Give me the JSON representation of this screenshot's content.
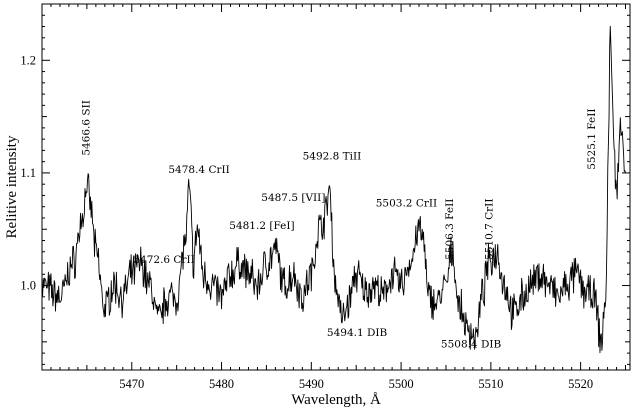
{
  "chart_data": {
    "type": "line",
    "title": "",
    "xlabel": "Wavelength, Å",
    "ylabel": "Relitive intensity",
    "xlim": [
      5460,
      5525.5
    ],
    "ylim": [
      0.925,
      1.25
    ],
    "x_ticks": [
      5470,
      5480,
      5490,
      5500,
      5510,
      5520
    ],
    "y_ticks": [
      1.0,
      1.1,
      1.2
    ],
    "y_tick_labels": [
      "1.0",
      "1.1",
      "1.2"
    ],
    "grid": false,
    "legend": "none",
    "line_color": "#000000",
    "series": [
      {
        "x": [
          5460,
          5462,
          5463.5,
          5464.5,
          5465,
          5465.4,
          5466,
          5467,
          5468,
          5469,
          5470,
          5471,
          5472,
          5473,
          5474,
          5475,
          5476,
          5476.4,
          5476.9,
          5477.3,
          5478,
          5479,
          5480,
          5481,
          5482,
          5483,
          5484,
          5485,
          5486,
          5487,
          5488,
          5489,
          5490,
          5490.8,
          5491.5,
          5492,
          5492.7,
          5493.5,
          5494.1,
          5495,
          5496,
          5497,
          5498,
          5499,
          5500,
          5501,
          5502,
          5502.5,
          5503,
          5504,
          5505,
          5505.7,
          5506.5,
          5507.5,
          5508.4,
          5509,
          5509.8,
          5510.7,
          5511.5,
          5512.5,
          5513.5,
          5514.5,
          5515.5,
          5516.5,
          5517.5,
          5518.5,
          5519.5,
          5520.5,
          5521.5,
          5522.3,
          5522.8,
          5523.1,
          5523.3,
          5523.6,
          5524,
          5524.5,
          5525
        ],
        "y": [
          1.0,
          0.99,
          1.02,
          1.06,
          1.09,
          1.07,
          1.03,
          0.98,
          1.0,
          0.99,
          1.01,
          1.02,
          1.0,
          0.97,
          0.99,
          0.99,
          1.04,
          1.085,
          1.02,
          1.05,
          1.01,
          1.0,
          0.99,
          1.01,
          1.02,
          1.01,
          1.0,
          1.02,
          1.03,
          1.0,
          1.01,
          0.99,
          1.01,
          1.05,
          1.06,
          1.085,
          1.0,
          0.97,
          0.985,
          1.01,
          0.995,
          1.0,
          0.99,
          1.01,
          1.0,
          1.02,
          1.05,
          1.04,
          0.99,
          0.985,
          1.0,
          1.03,
          0.98,
          0.96,
          0.955,
          0.99,
          1.02,
          1.03,
          1.0,
          0.975,
          0.99,
          1.0,
          1.01,
          1.0,
          0.99,
          1.0,
          1.01,
          0.995,
          0.99,
          0.95,
          0.99,
          1.12,
          1.23,
          1.15,
          1.08,
          1.15,
          1.1
        ]
      }
    ],
    "annotations": [
      {
        "text": "5466.6 SII",
        "x": 5465.3,
        "y": 1.14,
        "rotate": true
      },
      {
        "text": "5472.6 CrII",
        "x": 5473.6,
        "y": 1.02,
        "rotate": false
      },
      {
        "text": "5478.4 CrII",
        "x": 5477.5,
        "y": 1.1,
        "rotate": false
      },
      {
        "text": "5481.2 [FeI]",
        "x": 5484.5,
        "y": 1.05,
        "rotate": false
      },
      {
        "text": "5487.5 [VII]",
        "x": 5488,
        "y": 1.075,
        "rotate": false
      },
      {
        "text": "5492.8 TiII",
        "x": 5492.3,
        "y": 1.112,
        "rotate": false
      },
      {
        "text": "5494.1 DIB",
        "x": 5495.1,
        "y": 0.955,
        "rotate": false
      },
      {
        "text": "5503.2 CrII",
        "x": 5500.6,
        "y": 1.07,
        "rotate": false
      },
      {
        "text": "5506.3 FeII",
        "x": 5505.8,
        "y": 1.05,
        "rotate": true
      },
      {
        "text": "5508.4 DIB",
        "x": 5507.8,
        "y": 0.945,
        "rotate": false
      },
      {
        "text": "5510.7 CrII",
        "x": 5510.2,
        "y": 1.05,
        "rotate": true
      },
      {
        "text": "5525.1 FeII",
        "x": 5521.6,
        "y": 1.13,
        "rotate": true
      }
    ]
  }
}
